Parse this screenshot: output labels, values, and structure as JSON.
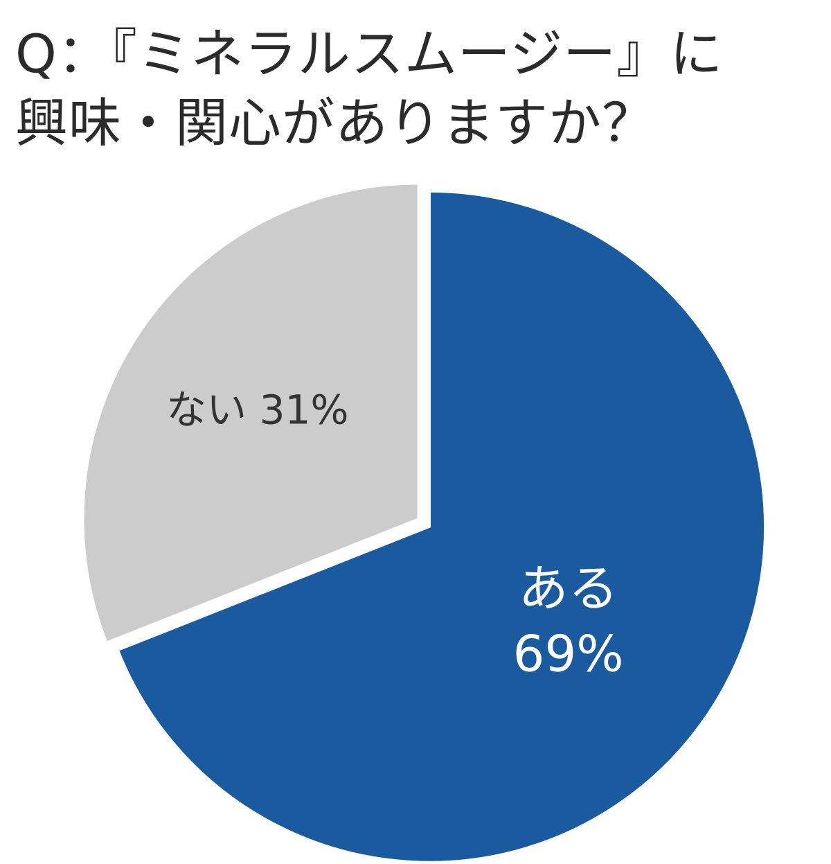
{
  "title_lines": [
    "Q：『ミネラルスムージー』に",
    "興味・関心がありますか？"
  ],
  "colors": {
    "yes": "#1a5a9e",
    "no": "#cccccc",
    "yes_label": "#ffffff",
    "no_label": "#333333",
    "title": "#2b2b2b"
  },
  "chart_data": {
    "type": "pie",
    "title": "Q：『ミネラルスムージー』に興味・関心がありますか？",
    "start_angle_deg": 0,
    "direction": "clockwise",
    "slices": [
      {
        "label": "ある",
        "value": 69,
        "display": [
          "ある",
          "69%"
        ],
        "color": "#1a5a9e",
        "exploded": true
      },
      {
        "label": "ない",
        "value": 31,
        "display": [
          "ない 31%"
        ],
        "color": "#cccccc",
        "exploded": false
      }
    ]
  }
}
